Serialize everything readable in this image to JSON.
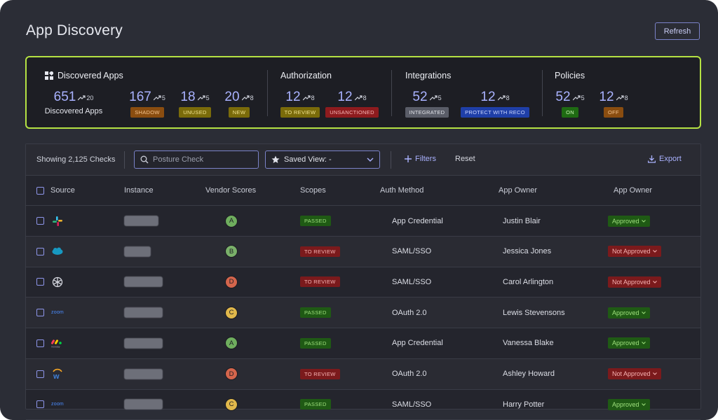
{
  "page": {
    "title": "App Discovery",
    "refresh_label": "Refresh"
  },
  "summary": {
    "discovered": {
      "title": "Discovered Apps",
      "total": {
        "value": "651",
        "trend": "20",
        "label": "Discovered Apps"
      },
      "stats": [
        {
          "value": "167",
          "trend": "5",
          "badge": "SHADOW"
        },
        {
          "value": "18",
          "trend": "5",
          "badge": "UNUSED"
        },
        {
          "value": "20",
          "trend": "8",
          "badge": "NEW"
        }
      ]
    },
    "authorization": {
      "title": "Authorization",
      "stats": [
        {
          "value": "12",
          "trend": "8",
          "badge": "TO REVIEW"
        },
        {
          "value": "12",
          "trend": "8",
          "badge": "UNSANCTIONED"
        }
      ]
    },
    "integrations": {
      "title": "Integrations",
      "stats": [
        {
          "value": "52",
          "trend": "5",
          "badge": "INTEGRATED"
        },
        {
          "value": "12",
          "trend": "8",
          "badge": "PROTECT WITH RECO"
        }
      ]
    },
    "policies": {
      "title": "Policies",
      "stats": [
        {
          "value": "52",
          "trend": "5",
          "badge": "ON"
        },
        {
          "value": "12",
          "trend": "8",
          "badge": "OFF"
        }
      ]
    }
  },
  "toolbar": {
    "showing": "Showing 2,125 Checks",
    "search_placeholder": "Posture Check",
    "saved_view": "Saved View: -",
    "filters": "Filters",
    "reset": "Reset",
    "export": "Export"
  },
  "table": {
    "headers": [
      "Source",
      "Instance",
      "Vendor Scores",
      "Scopes",
      "Auth Method",
      "App Owner",
      "App Owner"
    ],
    "rows": [
      {
        "source": "slack-icon",
        "score": "A",
        "scope": "PASSED",
        "auth": "App Credential",
        "owner": "Justin Blair",
        "approval": "Approved"
      },
      {
        "source": "salesforce-icon",
        "score": "B",
        "scope": "TO REVIEW",
        "auth": "SAML/SSO",
        "owner": "Jessica Jones",
        "approval": "Not Approved"
      },
      {
        "source": "openai-icon",
        "score": "D",
        "scope": "TO REVIEW",
        "auth": "SAML/SSO",
        "owner": "Carol Arlington",
        "approval": "Not Approved"
      },
      {
        "source": "zoom-icon",
        "score": "C",
        "scope": "PASSED",
        "auth": "OAuth 2.0",
        "owner": "Lewis Stevensons",
        "approval": "Approved"
      },
      {
        "source": "monday-icon",
        "score": "A",
        "scope": "PASSED",
        "auth": "App Credential",
        "owner": "Vanessa Blake",
        "approval": "Approved"
      },
      {
        "source": "workday-icon",
        "score": "D",
        "scope": "TO REVIEW",
        "auth": "OAuth 2.0",
        "owner": "Ashley Howard",
        "approval": "Not Approved"
      },
      {
        "source": "zoom-icon",
        "score": "C",
        "scope": "PASSED",
        "auth": "SAML/SSO",
        "owner": "Harry Potter",
        "approval": "Approved"
      }
    ],
    "logo_text": {
      "zoom": "zoom",
      "monday": "monday"
    }
  },
  "colors": {
    "accent": "#a9b2ff",
    "highlight_border": "#b5e243",
    "background": "#2b2d36"
  }
}
